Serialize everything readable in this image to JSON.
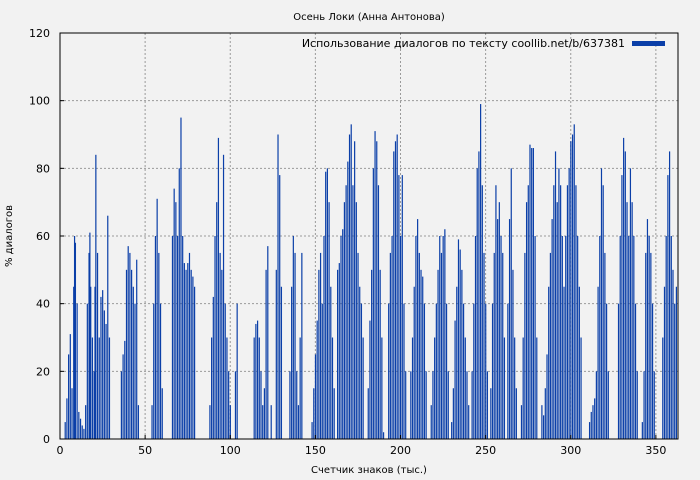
{
  "chart_data": {
    "type": "bar",
    "title": "Осень Локи (Анна Антонова)",
    "xlabel": "Счетчик знаков (тыс.)",
    "ylabel": "% диалогов",
    "legend": {
      "label": "Использование диалогов по тексту coollib.net/b/637381",
      "position": "top-right"
    },
    "xlim": [
      0,
      363
    ],
    "ylim": [
      0,
      120
    ],
    "xticks": [
      "0",
      "50",
      "100",
      "150",
      "200",
      "250",
      "300",
      "350"
    ],
    "yticks": [
      "0",
      "20",
      "40",
      "60",
      "80",
      "100",
      "120"
    ],
    "grid": true,
    "bar_color": "#0b3fa8",
    "series": [
      {
        "values": [
          [
            3,
            5
          ],
          [
            4,
            12
          ],
          [
            5,
            25
          ],
          [
            6,
            31
          ],
          [
            7,
            15
          ],
          [
            8,
            45
          ],
          [
            8.5,
            60
          ],
          [
            9,
            58
          ],
          [
            10,
            40
          ],
          [
            11,
            8
          ],
          [
            12,
            6
          ],
          [
            13,
            4
          ],
          [
            14,
            3
          ],
          [
            15,
            10
          ],
          [
            16,
            40
          ],
          [
            17,
            55
          ],
          [
            17.5,
            61
          ],
          [
            18,
            45
          ],
          [
            19,
            30
          ],
          [
            20,
            20
          ],
          [
            20.5,
            45
          ],
          [
            21,
            84
          ],
          [
            22,
            55
          ],
          [
            23,
            30
          ],
          [
            24,
            42
          ],
          [
            25,
            44
          ],
          [
            26,
            38
          ],
          [
            27,
            34
          ],
          [
            28,
            66
          ],
          [
            29,
            30
          ],
          [
            36,
            20
          ],
          [
            37,
            25
          ],
          [
            38,
            29
          ],
          [
            39,
            50
          ],
          [
            40,
            57
          ],
          [
            41,
            55
          ],
          [
            42,
            50
          ],
          [
            43,
            45
          ],
          [
            44,
            40
          ],
          [
            45,
            53
          ],
          [
            46,
            10
          ],
          [
            54,
            10
          ],
          [
            55,
            40
          ],
          [
            56,
            60
          ],
          [
            57,
            71
          ],
          [
            58,
            55
          ],
          [
            59,
            40
          ],
          [
            60,
            15
          ],
          [
            66,
            60
          ],
          [
            67,
            74
          ],
          [
            68,
            70
          ],
          [
            69,
            60
          ],
          [
            70,
            80
          ],
          [
            71,
            95
          ],
          [
            72,
            60
          ],
          [
            73,
            52
          ],
          [
            74,
            50
          ],
          [
            75,
            52
          ],
          [
            76,
            55
          ],
          [
            77,
            50
          ],
          [
            78,
            48
          ],
          [
            79,
            45
          ],
          [
            88,
            10
          ],
          [
            89,
            30
          ],
          [
            90,
            42
          ],
          [
            91,
            60
          ],
          [
            92,
            70
          ],
          [
            93,
            89
          ],
          [
            94,
            55
          ],
          [
            95,
            50
          ],
          [
            96,
            84
          ],
          [
            97,
            40
          ],
          [
            98,
            30
          ],
          [
            99,
            20
          ],
          [
            100,
            10
          ],
          [
            103,
            20
          ],
          [
            104,
            40
          ],
          [
            114,
            30
          ],
          [
            115,
            34
          ],
          [
            116,
            35
          ],
          [
            117,
            30
          ],
          [
            118,
            20
          ],
          [
            119,
            10
          ],
          [
            120,
            15
          ],
          [
            121,
            50
          ],
          [
            122,
            57
          ],
          [
            124,
            10
          ],
          [
            127,
            50
          ],
          [
            128,
            90
          ],
          [
            129,
            78
          ],
          [
            130,
            45
          ],
          [
            135,
            20
          ],
          [
            136,
            45
          ],
          [
            137,
            60
          ],
          [
            138,
            55
          ],
          [
            139,
            20
          ],
          [
            140,
            10
          ],
          [
            141,
            30
          ],
          [
            142,
            55
          ],
          [
            148,
            5
          ],
          [
            149,
            15
          ],
          [
            150,
            25
          ],
          [
            151,
            35
          ],
          [
            152,
            50
          ],
          [
            153,
            55
          ],
          [
            154,
            40
          ],
          [
            155,
            60
          ],
          [
            156,
            79
          ],
          [
            157,
            80
          ],
          [
            158,
            70
          ],
          [
            159,
            45
          ],
          [
            160,
            30
          ],
          [
            161,
            15
          ],
          [
            163,
            50
          ],
          [
            164,
            52
          ],
          [
            165,
            60
          ],
          [
            166,
            62
          ],
          [
            167,
            70
          ],
          [
            168,
            75
          ],
          [
            169,
            82
          ],
          [
            170,
            90
          ],
          [
            171,
            93
          ],
          [
            172,
            75
          ],
          [
            173,
            88
          ],
          [
            174,
            70
          ],
          [
            175,
            55
          ],
          [
            176,
            45
          ],
          [
            177,
            40
          ],
          [
            178,
            30
          ],
          [
            181,
            15
          ],
          [
            182,
            35
          ],
          [
            183,
            50
          ],
          [
            184,
            80
          ],
          [
            185,
            91
          ],
          [
            186,
            88
          ],
          [
            187,
            75
          ],
          [
            188,
            50
          ],
          [
            189,
            30
          ],
          [
            190,
            2
          ],
          [
            193,
            40
          ],
          [
            194,
            55
          ],
          [
            195,
            60
          ],
          [
            196,
            85
          ],
          [
            197,
            88
          ],
          [
            198,
            90
          ],
          [
            199,
            78
          ],
          [
            200,
            60
          ],
          [
            201,
            78
          ],
          [
            202,
            40
          ],
          [
            203,
            20
          ],
          [
            206,
            20
          ],
          [
            207,
            30
          ],
          [
            208,
            45
          ],
          [
            209,
            60
          ],
          [
            210,
            65
          ],
          [
            211,
            55
          ],
          [
            212,
            50
          ],
          [
            213,
            48
          ],
          [
            214,
            40
          ],
          [
            215,
            20
          ],
          [
            218,
            10
          ],
          [
            219,
            20
          ],
          [
            220,
            30
          ],
          [
            221,
            40
          ],
          [
            222,
            50
          ],
          [
            223,
            60
          ],
          [
            224,
            55
          ],
          [
            225,
            60
          ],
          [
            226,
            62
          ],
          [
            227,
            40
          ],
          [
            228,
            20
          ],
          [
            230,
            5
          ],
          [
            231,
            15
          ],
          [
            232,
            35
          ],
          [
            233,
            45
          ],
          [
            234,
            59
          ],
          [
            235,
            56
          ],
          [
            236,
            50
          ],
          [
            237,
            40
          ],
          [
            238,
            30
          ],
          [
            239,
            20
          ],
          [
            240,
            10
          ],
          [
            242,
            20
          ],
          [
            243,
            40
          ],
          [
            244,
            60
          ],
          [
            245,
            80
          ],
          [
            246,
            85
          ],
          [
            247,
            99
          ],
          [
            248,
            75
          ],
          [
            249,
            55
          ],
          [
            250,
            40
          ],
          [
            251,
            20
          ],
          [
            253,
            15
          ],
          [
            254,
            40
          ],
          [
            255,
            55
          ],
          [
            256,
            75
          ],
          [
            257,
            65
          ],
          [
            258,
            70
          ],
          [
            259,
            60
          ],
          [
            260,
            55
          ],
          [
            261,
            30
          ],
          [
            263,
            40
          ],
          [
            264,
            65
          ],
          [
            265,
            80
          ],
          [
            266,
            50
          ],
          [
            267,
            30
          ],
          [
            268,
            15
          ],
          [
            271,
            10
          ],
          [
            272,
            30
          ],
          [
            273,
            55
          ],
          [
            274,
            70
          ],
          [
            275,
            75
          ],
          [
            276,
            87
          ],
          [
            277,
            86
          ],
          [
            278,
            86
          ],
          [
            279,
            60
          ],
          [
            280,
            30
          ],
          [
            283,
            10
          ],
          [
            284,
            7
          ],
          [
            285,
            15
          ],
          [
            286,
            25
          ],
          [
            287,
            45
          ],
          [
            288,
            55
          ],
          [
            289,
            65
          ],
          [
            290,
            75
          ],
          [
            291,
            85
          ],
          [
            292,
            70
          ],
          [
            293,
            80
          ],
          [
            294,
            75
          ],
          [
            295,
            60
          ],
          [
            296,
            45
          ],
          [
            297,
            60
          ],
          [
            298,
            75
          ],
          [
            299,
            80
          ],
          [
            300,
            88
          ],
          [
            301,
            90
          ],
          [
            302,
            93
          ],
          [
            303,
            75
          ],
          [
            304,
            60
          ],
          [
            305,
            45
          ],
          [
            306,
            30
          ],
          [
            311,
            5
          ],
          [
            312,
            8
          ],
          [
            313,
            10
          ],
          [
            314,
            12
          ],
          [
            315,
            20
          ],
          [
            316,
            45
          ],
          [
            317,
            60
          ],
          [
            318,
            80
          ],
          [
            319,
            75
          ],
          [
            320,
            55
          ],
          [
            321,
            40
          ],
          [
            322,
            20
          ],
          [
            328,
            40
          ],
          [
            329,
            60
          ],
          [
            330,
            78
          ],
          [
            331,
            89
          ],
          [
            332,
            85
          ],
          [
            333,
            70
          ],
          [
            334,
            60
          ],
          [
            335,
            80
          ],
          [
            336,
            70
          ],
          [
            337,
            60
          ],
          [
            338,
            40
          ],
          [
            339,
            20
          ],
          [
            342,
            5
          ],
          [
            343,
            20
          ],
          [
            344,
            55
          ],
          [
            345,
            65
          ],
          [
            346,
            60
          ],
          [
            347,
            55
          ],
          [
            348,
            40
          ],
          [
            349,
            20
          ],
          [
            354,
            30
          ],
          [
            355,
            45
          ],
          [
            356,
            60
          ],
          [
            357,
            78
          ],
          [
            358,
            85
          ],
          [
            359,
            60
          ],
          [
            360,
            50
          ],
          [
            361,
            40
          ],
          [
            362,
            45
          ]
        ]
      }
    ]
  }
}
